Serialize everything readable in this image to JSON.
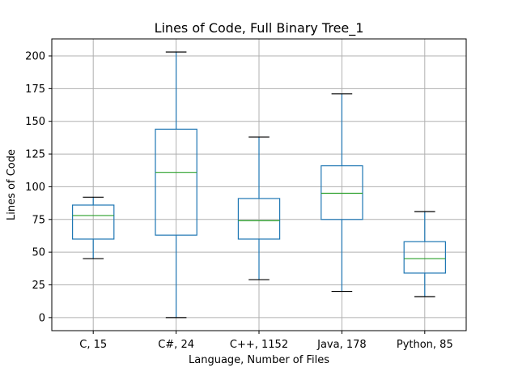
{
  "chart_data": {
    "type": "box",
    "title": "Lines of Code, Full Binary Tree_1",
    "xlabel": "Language, Number of Files",
    "ylabel": "Lines of Code",
    "ylim": [
      -10,
      213
    ],
    "yticks": [
      0,
      25,
      50,
      75,
      100,
      125,
      150,
      175,
      200
    ],
    "grid": true,
    "box_color": "#1f77b4",
    "median_color": "#2ca02c",
    "whisker_cap_color": "#000000",
    "grid_color": "#b0b0b0",
    "categories": [
      "C, 15",
      "C#, 24",
      "C++, 1152",
      "Java, 178",
      "Python, 85"
    ],
    "boxes": [
      {
        "whisker_low": 45,
        "q1": 60,
        "median": 78,
        "q3": 86,
        "whisker_high": 92
      },
      {
        "whisker_low": 0,
        "q1": 63,
        "median": 111,
        "q3": 144,
        "whisker_high": 203
      },
      {
        "whisker_low": 29,
        "q1": 60,
        "median": 74,
        "q3": 91,
        "whisker_high": 138
      },
      {
        "whisker_low": 20,
        "q1": 75,
        "median": 95,
        "q3": 116,
        "whisker_high": 171
      },
      {
        "whisker_low": 16,
        "q1": 34,
        "median": 45,
        "q3": 58,
        "whisker_high": 81
      }
    ]
  }
}
